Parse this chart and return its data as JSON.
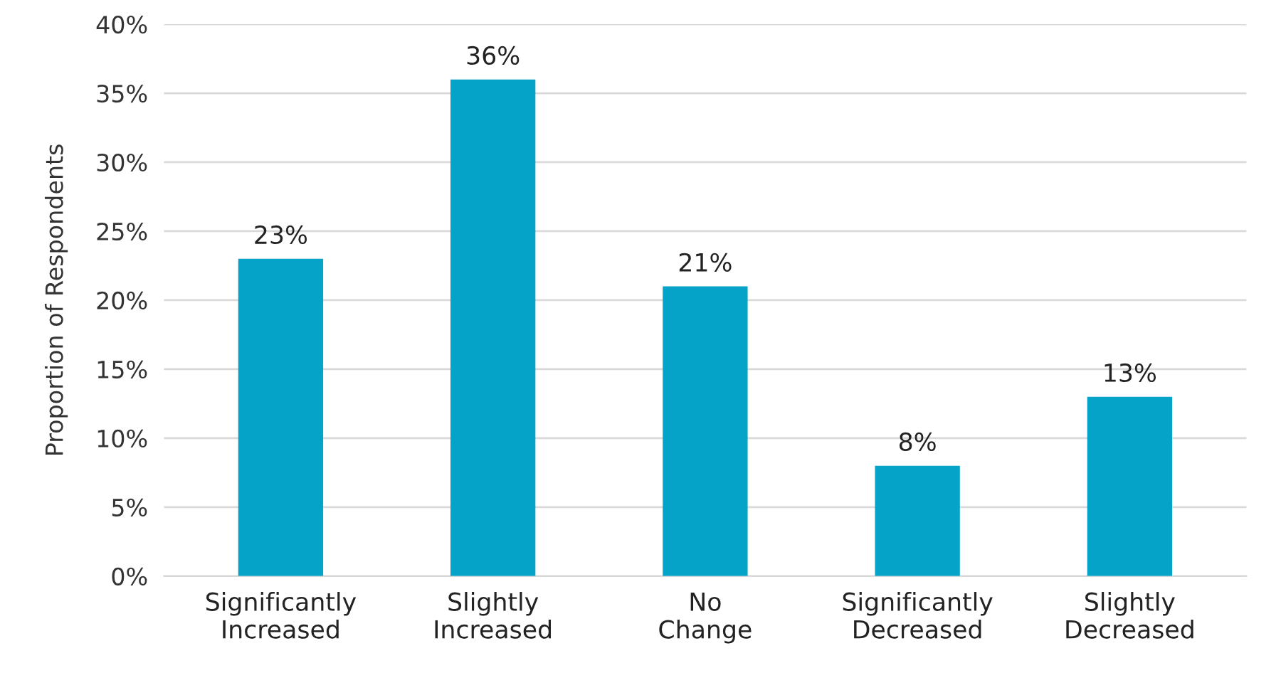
{
  "chart_data": {
    "type": "bar",
    "ylabel": "Proportion of Respondents",
    "categories": [
      "Significantly\nIncreased",
      "Slightly\nIncreased",
      "No\nChange",
      "Significantly\nDecreased",
      "Slightly\nDecreased"
    ],
    "values": [
      23,
      36,
      21,
      8,
      13
    ],
    "value_labels": [
      "23%",
      "36%",
      "21%",
      "8%",
      "13%"
    ],
    "color": "#05a3c7",
    "ylim": [
      0,
      40
    ],
    "yticks": [
      {
        "value": 0,
        "label": "0%"
      },
      {
        "value": 5,
        "label": "5%"
      },
      {
        "value": 10,
        "label": "10%"
      },
      {
        "value": 15,
        "label": "15%"
      },
      {
        "value": 20,
        "label": "20%"
      },
      {
        "value": 25,
        "label": "25%"
      },
      {
        "value": 30,
        "label": "30%"
      },
      {
        "value": 35,
        "label": "35%"
      },
      {
        "value": 40,
        "label": "40%"
      }
    ],
    "grid": "y",
    "legend": false
  }
}
